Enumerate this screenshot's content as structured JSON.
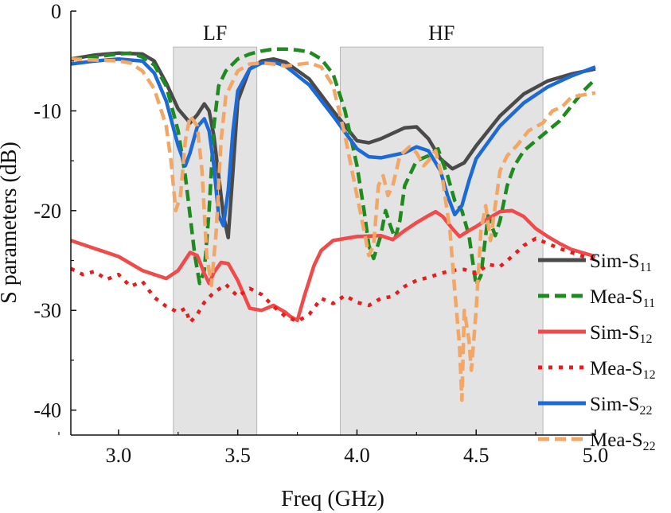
{
  "chart_data": {
    "type": "line",
    "xlabel": "Freq (GHz)",
    "ylabel": "S parameters (dB)",
    "xlim": [
      2.8,
      5.0
    ],
    "ylim": [
      -42.5,
      0
    ],
    "x_ticks": [
      "3.0",
      "3.5",
      "4.0",
      "4.5",
      "5.0"
    ],
    "x_tick_values": [
      3.0,
      3.5,
      4.0,
      4.5,
      5.0
    ],
    "y_ticks": [
      "0",
      "-10",
      "-20",
      "-30",
      "-40"
    ],
    "y_tick_values": [
      0,
      -10,
      -20,
      -30,
      -40
    ],
    "bands": [
      {
        "label": "LF",
        "x_start": 3.23,
        "x_end": 3.58
      },
      {
        "label": "HF",
        "x_start": 3.93,
        "x_end": 4.78
      }
    ],
    "band_color": "#e3e3e3",
    "series": [
      {
        "name": "Sim-S",
        "sub": "11",
        "color": "#4a4a4a",
        "dash": "solid",
        "values": [
          [
            2.8,
            -4.8
          ],
          [
            2.9,
            -4.4
          ],
          [
            3.0,
            -4.2
          ],
          [
            3.1,
            -4.3
          ],
          [
            3.15,
            -5.0
          ],
          [
            3.2,
            -7.2
          ],
          [
            3.25,
            -9.8
          ],
          [
            3.3,
            -11.2
          ],
          [
            3.33,
            -10.4
          ],
          [
            3.36,
            -9.3
          ],
          [
            3.38,
            -10.0
          ],
          [
            3.4,
            -12.5
          ],
          [
            3.42,
            -16.5
          ],
          [
            3.44,
            -20.5
          ],
          [
            3.46,
            -22.7
          ],
          [
            3.48,
            -16.0
          ],
          [
            3.5,
            -9.0
          ],
          [
            3.55,
            -5.8
          ],
          [
            3.6,
            -5.0
          ],
          [
            3.65,
            -4.8
          ],
          [
            3.7,
            -5.1
          ],
          [
            3.8,
            -6.8
          ],
          [
            3.9,
            -10.0
          ],
          [
            4.0,
            -13.0
          ],
          [
            4.05,
            -13.2
          ],
          [
            4.1,
            -12.8
          ],
          [
            4.2,
            -11.7
          ],
          [
            4.25,
            -11.6
          ],
          [
            4.3,
            -12.8
          ],
          [
            4.35,
            -14.8
          ],
          [
            4.4,
            -15.8
          ],
          [
            4.45,
            -15.2
          ],
          [
            4.5,
            -13.5
          ],
          [
            4.6,
            -10.5
          ],
          [
            4.7,
            -8.3
          ],
          [
            4.8,
            -7.0
          ],
          [
            4.9,
            -6.3
          ],
          [
            5.0,
            -5.8
          ]
        ]
      },
      {
        "name": "Mea-S",
        "sub": "11",
        "color": "#1f8a1f",
        "dash": "dash",
        "values": [
          [
            2.8,
            -4.8
          ],
          [
            2.9,
            -4.6
          ],
          [
            3.0,
            -4.3
          ],
          [
            3.05,
            -4.2
          ],
          [
            3.1,
            -4.6
          ],
          [
            3.15,
            -5.4
          ],
          [
            3.2,
            -7.5
          ],
          [
            3.25,
            -12.0
          ],
          [
            3.28,
            -16.5
          ],
          [
            3.3,
            -20.5
          ],
          [
            3.32,
            -24.5
          ],
          [
            3.34,
            -27.3
          ],
          [
            3.36,
            -26.0
          ],
          [
            3.38,
            -20.0
          ],
          [
            3.4,
            -11.5
          ],
          [
            3.42,
            -7.5
          ],
          [
            3.45,
            -6.0
          ],
          [
            3.5,
            -4.8
          ],
          [
            3.55,
            -4.3
          ],
          [
            3.6,
            -4.0
          ],
          [
            3.65,
            -3.8
          ],
          [
            3.7,
            -3.8
          ],
          [
            3.75,
            -3.9
          ],
          [
            3.8,
            -4.1
          ],
          [
            3.85,
            -4.8
          ],
          [
            3.9,
            -6.3
          ],
          [
            3.95,
            -10.0
          ],
          [
            4.0,
            -15.5
          ],
          [
            4.03,
            -20.0
          ],
          [
            4.05,
            -23.5
          ],
          [
            4.07,
            -24.8
          ],
          [
            4.1,
            -22.5
          ],
          [
            4.12,
            -20.0
          ],
          [
            4.14,
            -21.5
          ],
          [
            4.16,
            -22.8
          ],
          [
            4.18,
            -21.0
          ],
          [
            4.2,
            -17.5
          ],
          [
            4.25,
            -15.0
          ],
          [
            4.3,
            -14.5
          ],
          [
            4.34,
            -13.8
          ],
          [
            4.38,
            -16.5
          ],
          [
            4.41,
            -19.0
          ],
          [
            4.44,
            -20.0
          ],
          [
            4.47,
            -22.5
          ],
          [
            4.5,
            -27.5
          ],
          [
            4.52,
            -26.5
          ],
          [
            4.55,
            -20.5
          ],
          [
            4.58,
            -22.5
          ],
          [
            4.6,
            -21.0
          ],
          [
            4.63,
            -17.5
          ],
          [
            4.66,
            -15.5
          ],
          [
            4.7,
            -14.0
          ],
          [
            4.75,
            -13.0
          ],
          [
            4.8,
            -12.0
          ],
          [
            4.85,
            -11.0
          ],
          [
            4.9,
            -9.5
          ],
          [
            4.95,
            -8.0
          ],
          [
            5.0,
            -6.8
          ]
        ]
      },
      {
        "name": "Sim-S",
        "sub": "12",
        "color": "#f04a4a",
        "dash": "solid",
        "values": [
          [
            2.8,
            -23.0
          ],
          [
            2.9,
            -23.8
          ],
          [
            3.0,
            -24.6
          ],
          [
            3.1,
            -26.0
          ],
          [
            3.2,
            -26.8
          ],
          [
            3.25,
            -26.0
          ],
          [
            3.3,
            -24.2
          ],
          [
            3.33,
            -24.5
          ],
          [
            3.36,
            -26.3
          ],
          [
            3.38,
            -27.3
          ],
          [
            3.4,
            -26.2
          ],
          [
            3.43,
            -25.2
          ],
          [
            3.46,
            -25.3
          ],
          [
            3.5,
            -27.0
          ],
          [
            3.55,
            -29.8
          ],
          [
            3.6,
            -30.0
          ],
          [
            3.65,
            -29.5
          ],
          [
            3.7,
            -30.2
          ],
          [
            3.72,
            -30.6
          ],
          [
            3.75,
            -31.0
          ],
          [
            3.78,
            -28.5
          ],
          [
            3.82,
            -25.5
          ],
          [
            3.85,
            -24.0
          ],
          [
            3.9,
            -23.0
          ],
          [
            4.0,
            -22.6
          ],
          [
            4.1,
            -22.5
          ],
          [
            4.15,
            -22.9
          ],
          [
            4.2,
            -22.0
          ],
          [
            4.25,
            -21.2
          ],
          [
            4.3,
            -20.5
          ],
          [
            4.33,
            -20.1
          ],
          [
            4.36,
            -20.6
          ],
          [
            4.4,
            -21.8
          ],
          [
            4.43,
            -22.6
          ],
          [
            4.47,
            -22.0
          ],
          [
            4.5,
            -21.6
          ],
          [
            4.55,
            -20.8
          ],
          [
            4.6,
            -20.1
          ],
          [
            4.65,
            -20.0
          ],
          [
            4.7,
            -20.6
          ],
          [
            4.75,
            -21.8
          ],
          [
            4.8,
            -22.6
          ],
          [
            4.85,
            -23.3
          ],
          [
            4.9,
            -23.9
          ],
          [
            5.0,
            -24.6
          ]
        ]
      },
      {
        "name": "Mea-S",
        "sub": "12",
        "color": "#e81c1c",
        "dash": "dot",
        "values": [
          [
            2.8,
            -25.8
          ],
          [
            2.85,
            -26.4
          ],
          [
            2.9,
            -26.1
          ],
          [
            2.95,
            -26.9
          ],
          [
            3.0,
            -26.4
          ],
          [
            3.05,
            -27.6
          ],
          [
            3.1,
            -27.1
          ],
          [
            3.15,
            -28.7
          ],
          [
            3.2,
            -29.6
          ],
          [
            3.25,
            -30.2
          ],
          [
            3.28,
            -29.8
          ],
          [
            3.3,
            -31.2
          ],
          [
            3.33,
            -30.4
          ],
          [
            3.36,
            -29.2
          ],
          [
            3.4,
            -28.2
          ],
          [
            3.45,
            -27.4
          ],
          [
            3.5,
            -28.6
          ],
          [
            3.55,
            -27.8
          ],
          [
            3.6,
            -28.4
          ],
          [
            3.65,
            -29.6
          ],
          [
            3.7,
            -30.6
          ],
          [
            3.75,
            -31.1
          ],
          [
            3.8,
            -30.4
          ],
          [
            3.85,
            -28.8
          ],
          [
            3.9,
            -29.3
          ],
          [
            3.95,
            -28.5
          ],
          [
            4.0,
            -29.2
          ],
          [
            4.05,
            -29.5
          ],
          [
            4.1,
            -28.8
          ],
          [
            4.15,
            -28.6
          ],
          [
            4.2,
            -27.6
          ],
          [
            4.25,
            -27.0
          ],
          [
            4.3,
            -26.7
          ],
          [
            4.35,
            -26.3
          ],
          [
            4.4,
            -26.0
          ],
          [
            4.45,
            -25.9
          ],
          [
            4.5,
            -26.3
          ],
          [
            4.55,
            -25.4
          ],
          [
            4.6,
            -25.6
          ],
          [
            4.65,
            -24.6
          ],
          [
            4.7,
            -23.5
          ],
          [
            4.75,
            -22.8
          ],
          [
            4.8,
            -23.3
          ],
          [
            4.85,
            -23.8
          ],
          [
            4.9,
            -24.2
          ],
          [
            4.95,
            -24.6
          ],
          [
            5.0,
            -24.9
          ]
        ]
      },
      {
        "name": "Sim-S",
        "sub": "22",
        "color": "#1c6ad6",
        "dash": "solid",
        "values": [
          [
            2.8,
            -5.3
          ],
          [
            2.9,
            -5.0
          ],
          [
            3.0,
            -4.8
          ],
          [
            3.1,
            -5.0
          ],
          [
            3.15,
            -6.2
          ],
          [
            3.2,
            -9.0
          ],
          [
            3.25,
            -13.5
          ],
          [
            3.28,
            -15.5
          ],
          [
            3.3,
            -14.2
          ],
          [
            3.33,
            -11.6
          ],
          [
            3.36,
            -10.8
          ],
          [
            3.38,
            -12.0
          ],
          [
            3.4,
            -15.5
          ],
          [
            3.42,
            -20.5
          ],
          [
            3.44,
            -21.5
          ],
          [
            3.46,
            -18.0
          ],
          [
            3.48,
            -12.0
          ],
          [
            3.5,
            -8.0
          ],
          [
            3.55,
            -5.8
          ],
          [
            3.6,
            -5.2
          ],
          [
            3.65,
            -5.1
          ],
          [
            3.7,
            -5.5
          ],
          [
            3.8,
            -7.4
          ],
          [
            3.9,
            -10.5
          ],
          [
            4.0,
            -13.8
          ],
          [
            4.05,
            -14.6
          ],
          [
            4.1,
            -14.7
          ],
          [
            4.2,
            -14.2
          ],
          [
            4.25,
            -13.6
          ],
          [
            4.3,
            -14.0
          ],
          [
            4.35,
            -16.0
          ],
          [
            4.38,
            -18.5
          ],
          [
            4.41,
            -20.4
          ],
          [
            4.44,
            -19.5
          ],
          [
            4.47,
            -17.0
          ],
          [
            4.5,
            -14.8
          ],
          [
            4.6,
            -11.5
          ],
          [
            4.7,
            -9.2
          ],
          [
            4.8,
            -7.6
          ],
          [
            4.9,
            -6.5
          ],
          [
            5.0,
            -5.6
          ]
        ]
      },
      {
        "name": "Mea-S",
        "sub": "22",
        "color": "#f2a766",
        "dash": "dash",
        "values": [
          [
            2.8,
            -4.8
          ],
          [
            2.9,
            -4.9
          ],
          [
            3.0,
            -5.0
          ],
          [
            3.05,
            -5.2
          ],
          [
            3.1,
            -6.0
          ],
          [
            3.15,
            -7.8
          ],
          [
            3.2,
            -11.5
          ],
          [
            3.22,
            -15.0
          ],
          [
            3.24,
            -20.0
          ],
          [
            3.26,
            -18.5
          ],
          [
            3.28,
            -13.0
          ],
          [
            3.3,
            -10.5
          ],
          [
            3.33,
            -11.5
          ],
          [
            3.35,
            -16.0
          ],
          [
            3.37,
            -24.5
          ],
          [
            3.39,
            -27.5
          ],
          [
            3.41,
            -22.0
          ],
          [
            3.43,
            -13.0
          ],
          [
            3.45,
            -8.5
          ],
          [
            3.5,
            -6.0
          ],
          [
            3.55,
            -5.3
          ],
          [
            3.6,
            -5.2
          ],
          [
            3.65,
            -5.3
          ],
          [
            3.7,
            -5.5
          ],
          [
            3.8,
            -5.2
          ],
          [
            3.85,
            -5.6
          ],
          [
            3.9,
            -7.5
          ],
          [
            3.95,
            -12.5
          ],
          [
            4.0,
            -18.5
          ],
          [
            4.03,
            -22.0
          ],
          [
            4.05,
            -24.5
          ],
          [
            4.07,
            -23.5
          ],
          [
            4.09,
            -17.5
          ],
          [
            4.11,
            -16.5
          ],
          [
            4.13,
            -18.5
          ],
          [
            4.15,
            -17.5
          ],
          [
            4.18,
            -14.5
          ],
          [
            4.22,
            -13.6
          ],
          [
            4.25,
            -14.2
          ],
          [
            4.28,
            -15.5
          ],
          [
            4.3,
            -15.0
          ],
          [
            4.33,
            -14.0
          ],
          [
            4.36,
            -17.0
          ],
          [
            4.39,
            -22.0
          ],
          [
            4.41,
            -28.0
          ],
          [
            4.43,
            -33.5
          ],
          [
            4.44,
            -39.0
          ],
          [
            4.45,
            -30.0
          ],
          [
            4.47,
            -33.0
          ],
          [
            4.48,
            -36.0
          ],
          [
            4.5,
            -30.0
          ],
          [
            4.52,
            -22.0
          ],
          [
            4.54,
            -19.5
          ],
          [
            4.56,
            -23.0
          ],
          [
            4.58,
            -19.5
          ],
          [
            4.6,
            -16.0
          ],
          [
            4.63,
            -14.5
          ],
          [
            4.67,
            -13.5
          ],
          [
            4.72,
            -12.0
          ],
          [
            4.78,
            -11.2
          ],
          [
            4.82,
            -10.0
          ],
          [
            4.86,
            -9.6
          ],
          [
            4.9,
            -8.6
          ],
          [
            4.95,
            -8.4
          ],
          [
            5.0,
            -8.2
          ]
        ]
      }
    ]
  }
}
